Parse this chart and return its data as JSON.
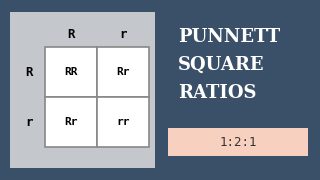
{
  "bg_color": "#3a5068",
  "panel_color": "#c4c8cd",
  "cell_color": "#ffffff",
  "cell_edge_color": "#888888",
  "title_lines": [
    "PUNNETT",
    "SQUARE",
    "RATIOS"
  ],
  "title_color": "#ffffff",
  "ratio_text": "1:2:1",
  "ratio_bg": "#f8d0c0",
  "ratio_text_color": "#333333",
  "col_headers": [
    "R",
    "r"
  ],
  "row_headers": [
    "R",
    "r"
  ],
  "cells": [
    [
      "RR",
      "Rr"
    ],
    [
      "Rr",
      "rr"
    ]
  ]
}
